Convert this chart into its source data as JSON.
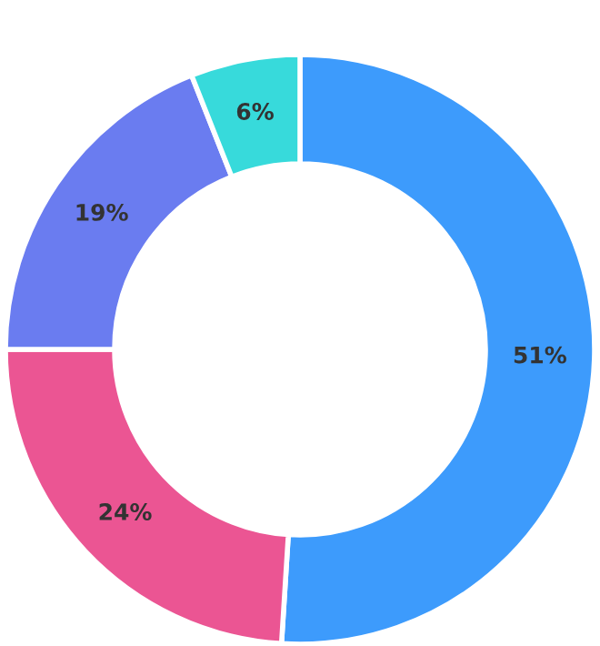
{
  "chart_data": {
    "type": "donut",
    "categories": [
      null,
      null,
      null,
      null
    ],
    "values": [
      51,
      24,
      19,
      6
    ],
    "colors": [
      "#3d9bfc",
      "#eb5593",
      "#6a7cf0",
      "#37dadb"
    ],
    "value_labels": [
      "51%",
      "24%",
      "19%",
      "6%"
    ],
    "legend": false
  }
}
